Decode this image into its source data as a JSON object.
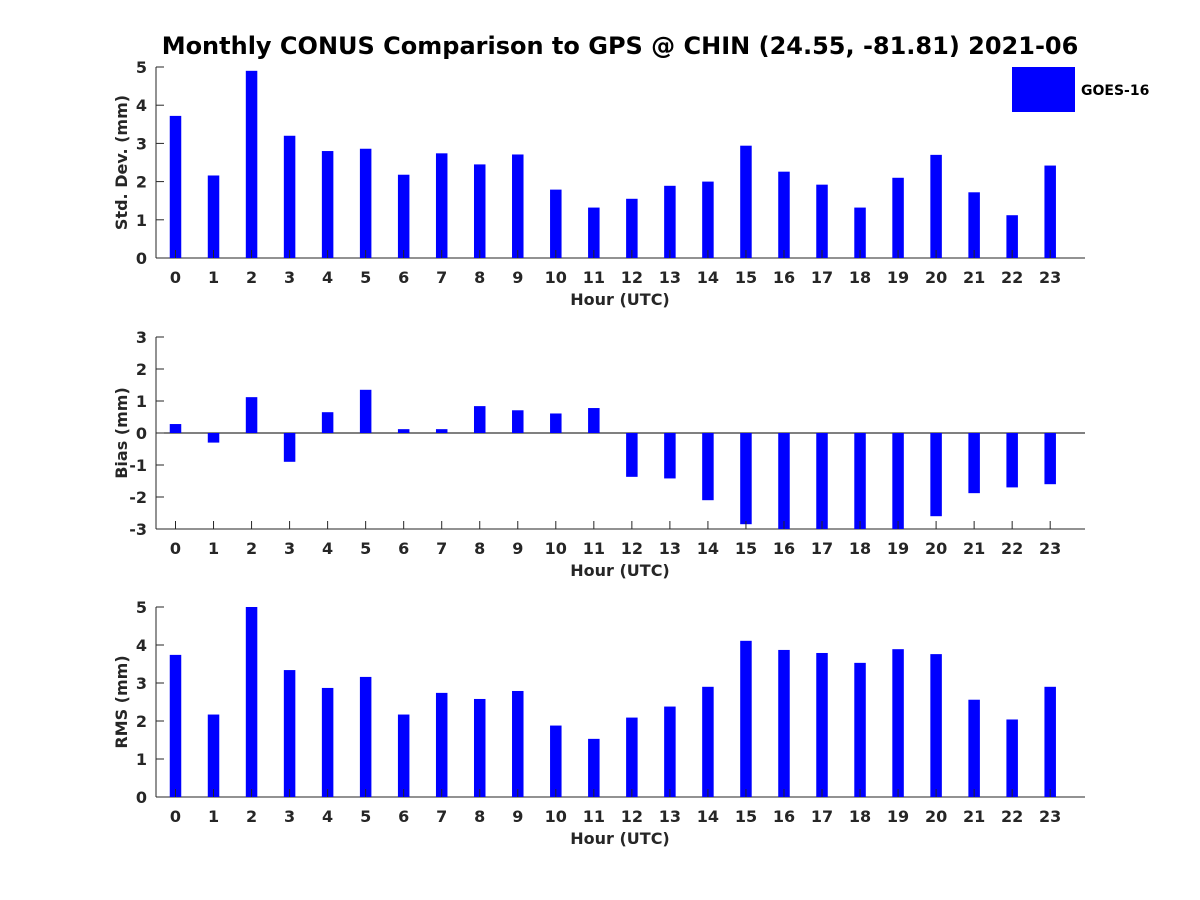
{
  "figure_title": "Monthly CONUS Comparison to GPS @ CHIN (24.55, -81.81) 2021-06",
  "legend": {
    "label": "GOES-16",
    "color": "#0000ff"
  },
  "chart_data": [
    {
      "type": "bar",
      "categories": [
        "0",
        "1",
        "2",
        "3",
        "4",
        "5",
        "6",
        "7",
        "8",
        "9",
        "10",
        "11",
        "12",
        "13",
        "14",
        "15",
        "16",
        "17",
        "18",
        "19",
        "20",
        "21",
        "22",
        "23"
      ],
      "series": [
        {
          "name": "GOES-16",
          "values": [
            3.72,
            2.16,
            4.9,
            3.2,
            2.8,
            2.86,
            2.18,
            2.74,
            2.45,
            2.71,
            1.79,
            1.32,
            1.55,
            1.89,
            2.0,
            2.94,
            2.26,
            1.92,
            1.32,
            2.1,
            2.7,
            1.72,
            1.12,
            2.42
          ]
        }
      ],
      "xlabel": "Hour (UTC)",
      "ylabel": "Std. Dev. (mm)",
      "ylim": [
        0,
        5
      ],
      "yticks": [
        "0",
        "1",
        "2",
        "3",
        "4",
        "5"
      ],
      "grid": false,
      "color": "#0000ff"
    },
    {
      "type": "bar",
      "categories": [
        "0",
        "1",
        "2",
        "3",
        "4",
        "5",
        "6",
        "7",
        "8",
        "9",
        "10",
        "11",
        "12",
        "13",
        "14",
        "15",
        "16",
        "17",
        "18",
        "19",
        "20",
        "21",
        "22",
        "23"
      ],
      "series": [
        {
          "name": "GOES-16",
          "values": [
            0.28,
            -0.3,
            1.12,
            -0.9,
            0.65,
            1.35,
            0.12,
            0.12,
            0.84,
            0.71,
            0.61,
            0.78,
            -1.37,
            -1.42,
            -2.1,
            -2.85,
            -3.0,
            -3.0,
            -3.0,
            -3.0,
            -2.6,
            -1.88,
            -1.7,
            -1.6
          ]
        }
      ],
      "xlabel": "Hour (UTC)",
      "ylabel": "Bias (mm)",
      "ylim": [
        -3,
        3
      ],
      "yticks": [
        "-3",
        "-2",
        "-1",
        "0",
        "1",
        "2",
        "3"
      ],
      "grid": false,
      "color": "#0000ff"
    },
    {
      "type": "bar",
      "categories": [
        "0",
        "1",
        "2",
        "3",
        "4",
        "5",
        "6",
        "7",
        "8",
        "9",
        "10",
        "11",
        "12",
        "13",
        "14",
        "15",
        "16",
        "17",
        "18",
        "19",
        "20",
        "21",
        "22",
        "23"
      ],
      "series": [
        {
          "name": "GOES-16",
          "values": [
            3.74,
            2.17,
            5.0,
            3.34,
            2.87,
            3.16,
            2.17,
            2.74,
            2.58,
            2.79,
            1.88,
            1.53,
            2.09,
            2.38,
            2.9,
            4.11,
            3.87,
            3.79,
            3.53,
            3.89,
            3.76,
            2.56,
            2.04,
            2.9
          ]
        }
      ],
      "xlabel": "Hour (UTC)",
      "ylabel": "RMS (mm)",
      "ylim": [
        0,
        5
      ],
      "yticks": [
        "0",
        "1",
        "2",
        "3",
        "4",
        "5"
      ],
      "grid": false,
      "color": "#0000ff"
    }
  ]
}
